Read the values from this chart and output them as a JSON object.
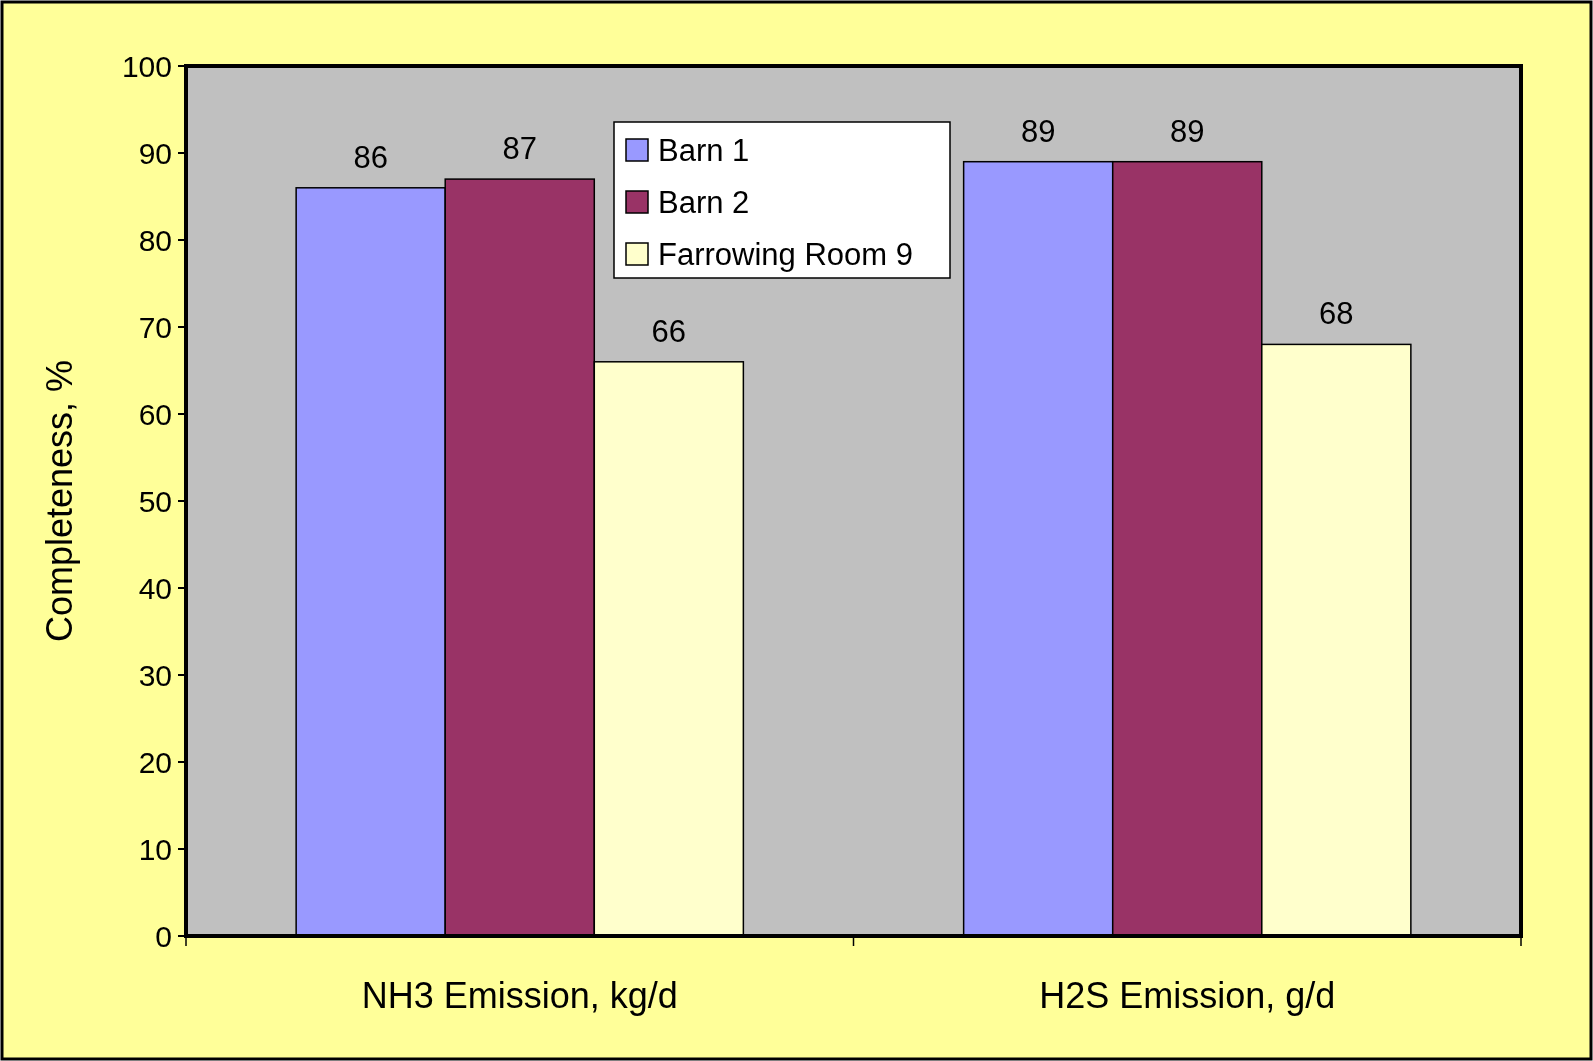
{
  "chart_data": {
    "type": "bar",
    "ylabel": "Completeness, %",
    "categories": [
      "NH3 Emission, kg/d",
      "H2S Emission, g/d"
    ],
    "series": [
      {
        "name": "Barn 1",
        "color": "#9999ff",
        "values": [
          86,
          89
        ]
      },
      {
        "name": "Barn 2",
        "color": "#993366",
        "values": [
          87,
          89
        ]
      },
      {
        "name": "Farrowing Room 9",
        "color": "#ffffcc",
        "values": [
          66,
          68
        ]
      }
    ],
    "ylim": [
      0,
      100
    ],
    "yticks": [
      0,
      10,
      20,
      30,
      40,
      50,
      60,
      70,
      80,
      90,
      100
    ],
    "grid": false,
    "legend": "top",
    "data_labels": true
  }
}
